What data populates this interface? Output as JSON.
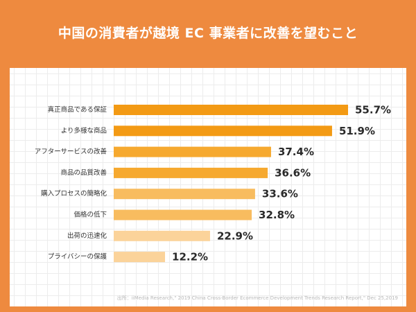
{
  "title": "中国の消費者が越境 EC 事業者に改善を望むこと",
  "source_note": "出所：iiMedia Research,\" 2019 China Cross-Border Ecommerce Development Trends Research Report,\" Dec 25,2019",
  "chart_data": {
    "type": "bar",
    "orientation": "horizontal",
    "title": "",
    "xlabel": "",
    "ylabel": "",
    "xlim": [
      0,
      60
    ],
    "grid": true,
    "categories": [
      "真正商品である保証",
      "より多様な商品",
      "アフターサービスの改善",
      "商品の品質改善",
      "購入プロセスの簡略化",
      "価格の低下",
      "出荷の迅速化",
      "プライバシーの保護"
    ],
    "values": [
      55.7,
      51.9,
      37.4,
      36.6,
      33.6,
      32.8,
      22.9,
      12.2
    ],
    "value_labels": [
      "55.7%",
      "51.9%",
      "37.4%",
      "36.6%",
      "33.6%",
      "32.8%",
      "22.9%",
      "12.2%"
    ],
    "bar_colors": [
      "#f39a14",
      "#f39a14",
      "#f6a92f",
      "#f6a92f",
      "#f8bc5f",
      "#f8bc5f",
      "#fbd39a",
      "#fbd39a"
    ]
  }
}
